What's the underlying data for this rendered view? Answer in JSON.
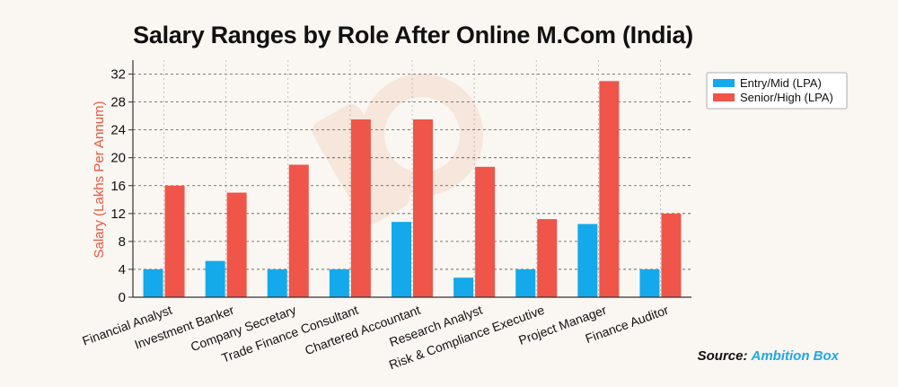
{
  "chart_data": {
    "type": "bar",
    "title": "Salary Ranges by Role After Online M.Com (India)",
    "ylabel": "Salary (Lakhs Per Annum)",
    "xlabel": "",
    "ylim": [
      0,
      34
    ],
    "yticks": [
      0,
      4,
      8,
      12,
      16,
      20,
      24,
      28,
      32
    ],
    "grid": true,
    "legend_position": "top-right",
    "categories": [
      "Financial Analyst",
      "Investment Banker",
      "Company Secretary",
      "Trade Finance Consultant",
      "Chartered Accountant",
      "Research Analyst",
      "Risk & Compliance Executive",
      "Project Manager",
      "Finance Auditor"
    ],
    "series": [
      {
        "name": "Entry/Mid (LPA)",
        "color": "#13a9ea",
        "values": [
          4,
          5.2,
          4,
          4,
          10.8,
          2.8,
          4,
          10.5,
          4
        ]
      },
      {
        "name": "Senior/High (LPA)",
        "color": "#ef5549",
        "values": [
          16,
          15,
          19,
          25.5,
          25.5,
          18.7,
          11.2,
          31,
          12
        ]
      }
    ]
  },
  "source": {
    "label": "Source:",
    "name": "Ambition Box"
  },
  "colors": {
    "background": "#faf6f2",
    "axis": "#333333",
    "ylabel": "#e8563f",
    "watermark": "#f3d9c9"
  }
}
